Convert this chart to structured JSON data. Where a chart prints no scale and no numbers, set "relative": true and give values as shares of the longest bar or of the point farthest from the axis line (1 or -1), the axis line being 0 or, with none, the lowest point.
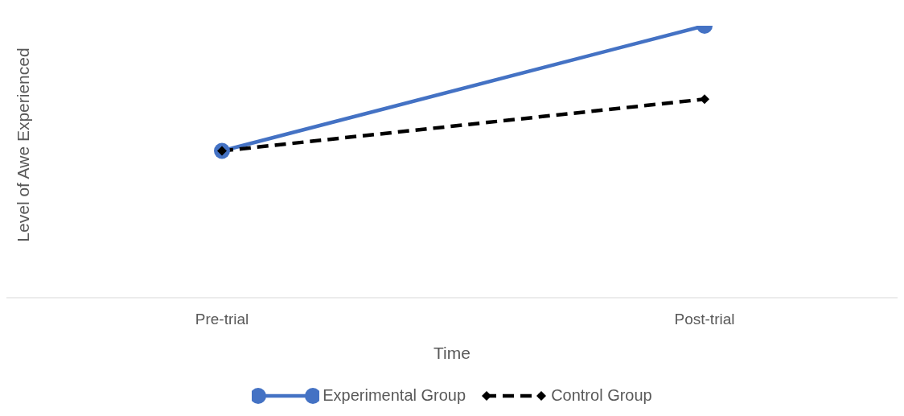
{
  "chart_data": {
    "type": "line",
    "relative": true,
    "xlabel": "Time",
    "ylabel": "Level of Awe Experienced",
    "categories": [
      "Pre-trial",
      "Post-trial"
    ],
    "legend": "bottom",
    "grid": false,
    "series": [
      {
        "name": "Experimental Group",
        "color": "#4472c4",
        "values": [
          0.54,
          1
        ],
        "marker": "circle",
        "line_style": "solid"
      },
      {
        "name": "Control Group",
        "color": "#000000",
        "values": [
          0.54,
          0.73
        ],
        "marker": "diamond",
        "line_style": "dashed"
      }
    ]
  }
}
